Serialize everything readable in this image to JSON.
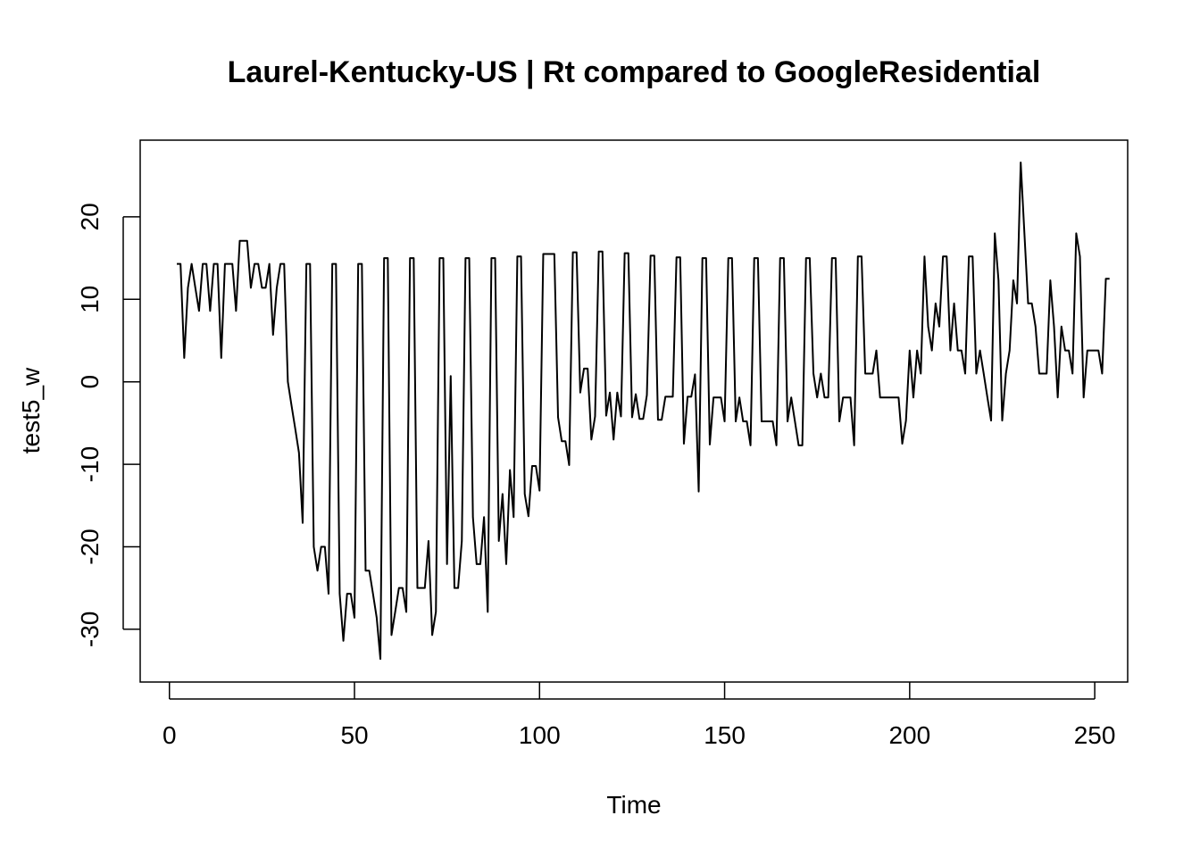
{
  "chart_data": {
    "type": "line",
    "title": "Laurel-Kentucky-US | Rt compared to GoogleResidential",
    "xlabel": "Time",
    "ylabel": "test5_w",
    "xlim": [
      -7.9,
      258.9
    ],
    "ylim": [
      -36.4,
      29.3
    ],
    "x_ticks": [
      0,
      50,
      100,
      150,
      200,
      250
    ],
    "y_ticks": [
      -30,
      -20,
      -10,
      0,
      10,
      20
    ],
    "x_tick_labels": [
      "0",
      "50",
      "100",
      "150",
      "200",
      "250"
    ],
    "y_tick_labels": [
      "-30",
      "-20",
      "-10",
      "0",
      "10",
      "20"
    ],
    "grid": false,
    "legend": "none",
    "line_color": "#000000",
    "x_start": 2,
    "values": [
      14.3,
      14.3,
      2.9,
      11.4,
      14.3,
      11.4,
      8.6,
      14.3,
      14.3,
      8.6,
      14.3,
      14.3,
      2.9,
      14.3,
      14.3,
      14.3,
      8.6,
      17.1,
      17.1,
      17.1,
      11.4,
      14.3,
      14.3,
      11.4,
      11.4,
      14.3,
      5.7,
      11.4,
      14.3,
      14.3,
      0.0,
      -2.9,
      -5.7,
      -8.6,
      -17.1,
      14.3,
      14.3,
      -20.0,
      -22.9,
      -20.0,
      -20.0,
      -25.7,
      14.3,
      14.3,
      -25.7,
      -31.4,
      -25.7,
      -25.7,
      -28.6,
      14.3,
      14.3,
      -22.9,
      -22.9,
      -25.7,
      -28.6,
      -33.6,
      15.0,
      15.0,
      -30.7,
      -27.9,
      -25.0,
      -25.0,
      -27.9,
      15.0,
      15.0,
      -25.0,
      -25.0,
      -25.0,
      -19.3,
      -30.7,
      -27.9,
      15.0,
      15.0,
      -22.1,
      0.7,
      -25.0,
      -25.0,
      -19.3,
      15.0,
      15.0,
      -16.4,
      -22.1,
      -22.1,
      -16.4,
      -27.9,
      15.0,
      15.0,
      -19.3,
      -13.6,
      -22.1,
      -10.7,
      -16.4,
      15.2,
      15.2,
      -13.6,
      -16.3,
      -10.2,
      -10.2,
      -13.2,
      15.5,
      15.5,
      15.5,
      15.5,
      -4.3,
      -7.2,
      -7.2,
      -10.1,
      15.7,
      15.7,
      -1.3,
      1.6,
      1.6,
      -7.0,
      -4.2,
      15.8,
      15.8,
      -4.1,
      -1.3,
      -7.0,
      -1.3,
      -4.2,
      15.6,
      15.6,
      -4.3,
      -1.5,
      -4.5,
      -4.5,
      -1.6,
      15.3,
      15.3,
      -4.6,
      -4.6,
      -1.8,
      -1.8,
      -1.8,
      15.1,
      15.1,
      -7.5,
      -1.8,
      -1.8,
      0.9,
      -13.3,
      15.0,
      15.0,
      -7.6,
      -1.9,
      -1.9,
      -1.9,
      -4.8,
      15.0,
      15.0,
      -4.8,
      -1.9,
      -4.8,
      -4.8,
      -7.7,
      15.0,
      15.0,
      -4.8,
      -4.8,
      -4.8,
      -4.8,
      -7.7,
      15.0,
      15.0,
      -4.8,
      -1.9,
      -4.8,
      -7.7,
      -7.7,
      15.0,
      15.0,
      1.0,
      -1.9,
      1.0,
      -1.9,
      -1.9,
      15.0,
      15.0,
      -4.8,
      -1.9,
      -1.9,
      -1.9,
      -7.7,
      15.2,
      15.2,
      1.0,
      1.0,
      1.0,
      3.8,
      -1.9,
      -1.9,
      -1.9,
      -1.9,
      -1.9,
      -1.9,
      -7.5,
      -4.7,
      3.8,
      -1.9,
      3.8,
      1.0,
      15.2,
      6.7,
      3.8,
      9.5,
      6.7,
      15.2,
      15.2,
      3.8,
      9.5,
      3.8,
      3.8,
      1.0,
      15.2,
      15.2,
      1.0,
      3.8,
      1.0,
      -1.9,
      -4.7,
      18.0,
      12.3,
      -4.7,
      1.0,
      3.8,
      12.3,
      9.5,
      26.6,
      18.0,
      9.5,
      9.5,
      6.7,
      1.0,
      1.0,
      1.0,
      12.3,
      6.7,
      -1.9,
      6.7,
      3.8,
      3.8,
      1.0,
      18.0,
      15.2,
      -1.9,
      3.8,
      3.8,
      3.8,
      3.8,
      1.0,
      12.5,
      12.5
    ]
  }
}
